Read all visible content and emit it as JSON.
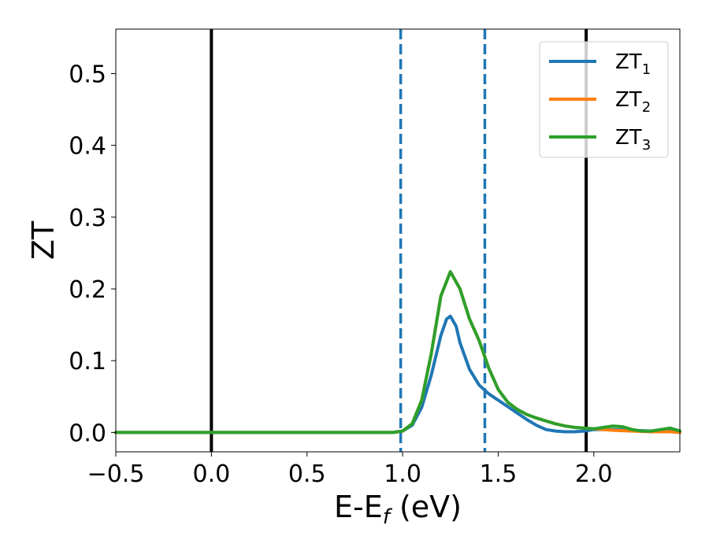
{
  "chart_data": {
    "type": "line",
    "xlabel": "E-E",
    "xlabel_sub": "f",
    "xlabel_unit": "(eV)",
    "ylabel": "ZT",
    "xlim": [
      -0.5,
      2.45
    ],
    "ylim": [
      -0.027,
      0.562
    ],
    "xticks": [
      -0.5,
      0.0,
      0.5,
      1.0,
      1.5,
      2.0
    ],
    "xtick_labels": [
      "−0.5",
      "0.0",
      "0.5",
      "1.0",
      "1.5",
      "2.0"
    ],
    "yticks": [
      0.0,
      0.1,
      0.2,
      0.3,
      0.4,
      0.5
    ],
    "ytick_labels": [
      "0.0",
      "0.1",
      "0.2",
      "0.3",
      "0.4",
      "0.5"
    ],
    "grid": false,
    "legend_position": "top-right",
    "vertical_lines": [
      {
        "x": 0.0,
        "style": "solid",
        "color": "#000000"
      },
      {
        "x": 1.96,
        "style": "solid",
        "color": "#000000"
      },
      {
        "x": 0.99,
        "style": "dashed",
        "color": "#1f77b4"
      },
      {
        "x": 1.43,
        "style": "dashed",
        "color": "#1f77b4"
      }
    ],
    "series": [
      {
        "name": "ZT",
        "name_sub": "1",
        "color": "#1f77b4",
        "x": [
          -0.5,
          0.0,
          0.5,
          0.95,
          1.0,
          1.05,
          1.1,
          1.15,
          1.2,
          1.23,
          1.25,
          1.28,
          1.3,
          1.35,
          1.4,
          1.45,
          1.5,
          1.55,
          1.6,
          1.65,
          1.7,
          1.75,
          1.8,
          1.85,
          1.9,
          1.95,
          2.0,
          2.1,
          2.2,
          2.3,
          2.45
        ],
        "y": [
          0.0,
          0.0,
          0.0,
          0.0,
          0.002,
          0.01,
          0.035,
          0.08,
          0.135,
          0.158,
          0.162,
          0.148,
          0.125,
          0.088,
          0.066,
          0.054,
          0.045,
          0.036,
          0.027,
          0.018,
          0.01,
          0.004,
          0.002,
          0.001,
          0.001,
          0.002,
          0.004,
          0.004,
          0.003,
          0.002,
          0.002
        ]
      },
      {
        "name": "ZT",
        "name_sub": "2",
        "color": "#ff7f0e",
        "x": [
          -0.5,
          0.0,
          0.5,
          0.95,
          1.0,
          1.05,
          1.1,
          1.15,
          1.2,
          1.25,
          1.3,
          1.35,
          1.4,
          1.45,
          1.5,
          1.55,
          1.6,
          1.65,
          1.7,
          1.75,
          1.8,
          1.85,
          1.9,
          1.95,
          2.0,
          2.05,
          2.1,
          2.2,
          2.3,
          2.4,
          2.45
        ],
        "y": [
          0.0,
          0.0,
          0.0,
          0.0,
          0.002,
          0.012,
          0.045,
          0.11,
          0.19,
          0.224,
          0.2,
          0.158,
          0.128,
          0.09,
          0.06,
          0.042,
          0.032,
          0.025,
          0.02,
          0.016,
          0.012,
          0.009,
          0.007,
          0.006,
          0.005,
          0.004,
          0.003,
          0.002,
          0.001,
          0.001,
          0.0
        ]
      },
      {
        "name": "ZT",
        "name_sub": "3",
        "color": "#2ca02c",
        "x": [
          -0.5,
          0.0,
          0.5,
          0.95,
          1.0,
          1.05,
          1.1,
          1.15,
          1.2,
          1.25,
          1.3,
          1.35,
          1.4,
          1.45,
          1.5,
          1.55,
          1.6,
          1.65,
          1.7,
          1.75,
          1.8,
          1.85,
          1.9,
          1.95,
          2.0,
          2.05,
          2.1,
          2.15,
          2.2,
          2.25,
          2.3,
          2.35,
          2.4,
          2.45
        ],
        "y": [
          0.0,
          0.0,
          0.0,
          0.0,
          0.002,
          0.012,
          0.045,
          0.11,
          0.19,
          0.224,
          0.2,
          0.158,
          0.128,
          0.09,
          0.06,
          0.042,
          0.032,
          0.025,
          0.02,
          0.016,
          0.012,
          0.009,
          0.007,
          0.006,
          0.005,
          0.007,
          0.009,
          0.008,
          0.004,
          0.002,
          0.002,
          0.004,
          0.006,
          0.002
        ]
      }
    ]
  }
}
